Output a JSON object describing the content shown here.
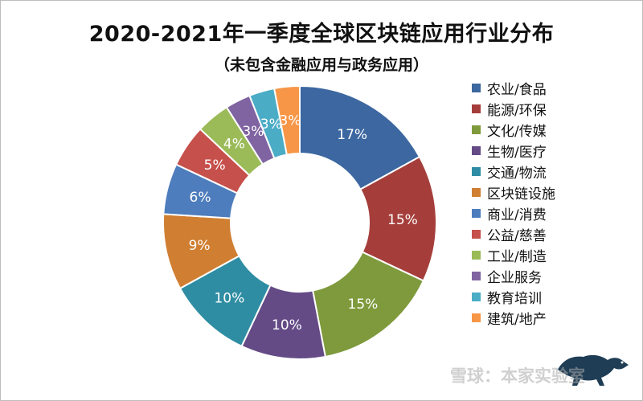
{
  "title": "2020-2021年一季度全球区块链应用行业分布",
  "subtitle": "（未包含金融应用与政务应用）",
  "watermark": "雪球：本家实验室",
  "chart_data": {
    "type": "pie",
    "title": "2020-2021年一季度全球区块链应用行业分布",
    "subtitle": "（未包含金融应用与政务应用）",
    "legend_position": "right",
    "categories": [
      "农业/食品",
      "能源/环保",
      "文化/传媒",
      "生物/医疗",
      "交通/物流",
      "区块链设施",
      "商业/消费",
      "公益/慈善",
      "工业/制造",
      "企业服务",
      "教育培训",
      "建筑/地产"
    ],
    "values": [
      17,
      15,
      15,
      10,
      10,
      9,
      6,
      5,
      4,
      3,
      3,
      3
    ],
    "labels": [
      "17%",
      "15%",
      "15%",
      "10%",
      "10%",
      "9%",
      "6%",
      "5%",
      "4%",
      "3%",
      "3%",
      "3%"
    ],
    "colors": [
      "#3c67a0",
      "#a53e3b",
      "#7e9a3c",
      "#644b86",
      "#2f8da3",
      "#d07f32",
      "#4e7dbd",
      "#c6504c",
      "#9bbb59",
      "#8064a2",
      "#4bacc6",
      "#f79646"
    ]
  }
}
